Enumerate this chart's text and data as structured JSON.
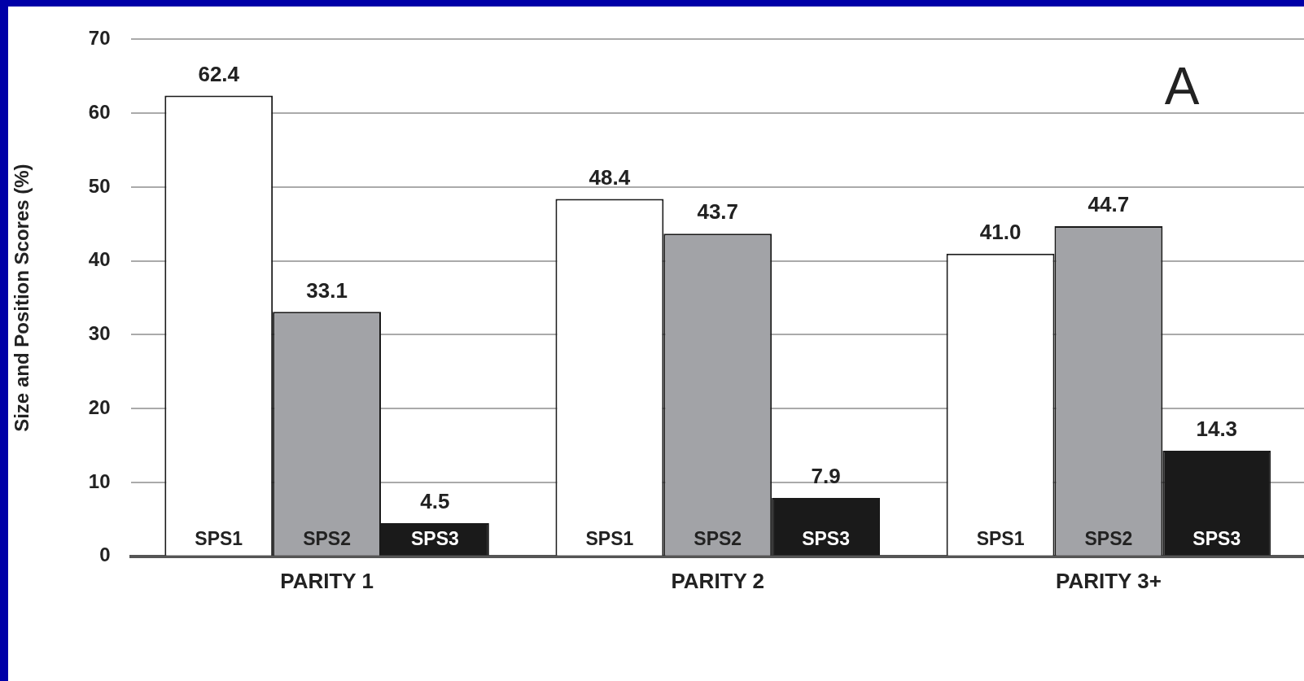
{
  "chart_data": {
    "type": "bar",
    "ylabel": "Size and Position Scores (%)",
    "categories": [
      "PARITY 1",
      "PARITY 2",
      "PARITY 3+"
    ],
    "series": [
      {
        "name": "SPS1",
        "color": "#ffffff",
        "values": [
          62.4,
          48.4,
          41.0
        ],
        "value_labels": [
          "62.4",
          "48.4",
          "41.0"
        ]
      },
      {
        "name": "SPS2",
        "color": "#a2a3a7",
        "values": [
          33.1,
          43.7,
          44.7
        ],
        "value_labels": [
          "33.1",
          "43.7",
          "44.7"
        ]
      },
      {
        "name": "SPS3",
        "color": "#1a1a1a",
        "values": [
          4.5,
          7.9,
          14.3
        ],
        "value_labels": [
          "4.5",
          "7.9",
          "14.3"
        ]
      }
    ],
    "ylim": [
      0,
      70
    ],
    "yticks": [
      0,
      10,
      20,
      30,
      40,
      50,
      60,
      70
    ],
    "grid": "y",
    "legend": false,
    "annotations": [
      "A"
    ]
  }
}
